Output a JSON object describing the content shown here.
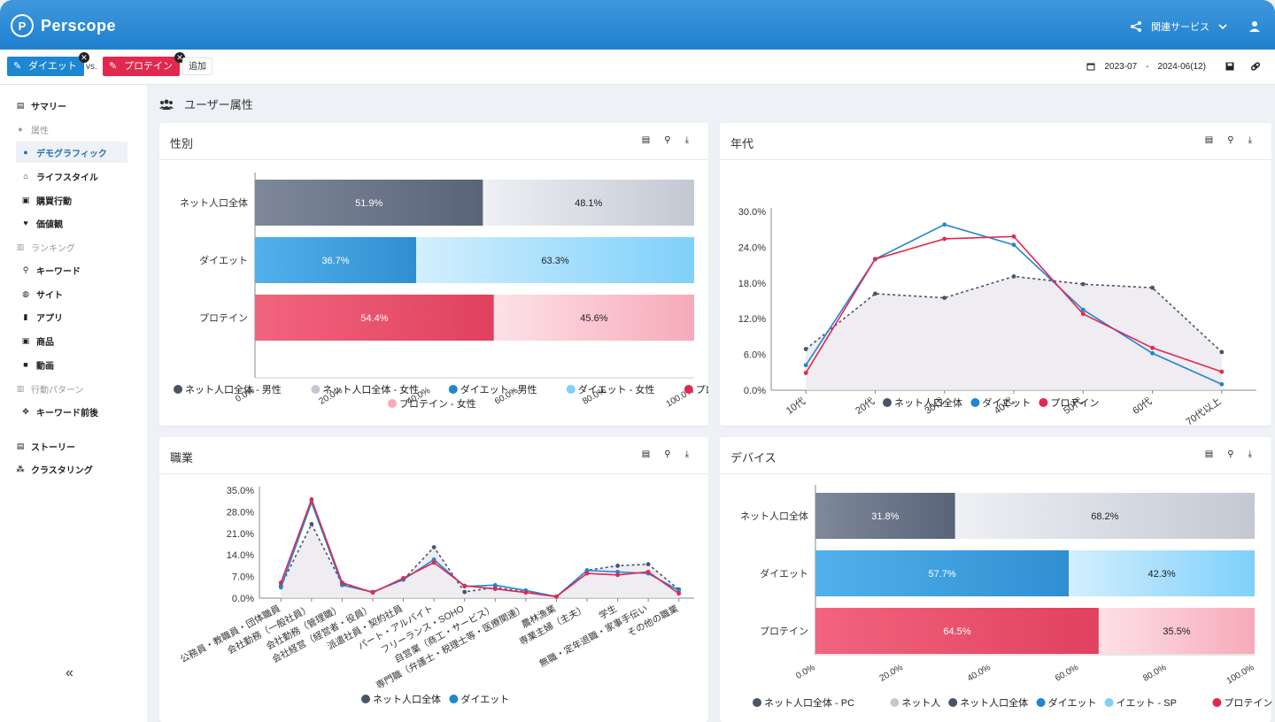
{
  "app": {
    "name": "Perscope",
    "logo_glyph": "P"
  },
  "header": {
    "related_services": "関連サービス",
    "user_icon": "user-icon",
    "share_icon": "share-icon"
  },
  "filters": {
    "chips": [
      {
        "label": "ダイエット",
        "color": "#1f86d1"
      },
      {
        "label": "プロテイン",
        "color": "#e2284f"
      }
    ],
    "vs": "vs.",
    "add": "追加",
    "date_start": "2023-07",
    "date_sep": "-",
    "date_end": "2024-06(12)"
  },
  "sidebar": {
    "items": [
      {
        "label": "サマリー",
        "icon": "document-icon",
        "kind": "top"
      },
      {
        "label": "属性",
        "icon": "person-icon",
        "kind": "section"
      },
      {
        "label": "デモグラフィック",
        "icon": "person-icon",
        "kind": "active"
      },
      {
        "label": "ライフスタイル",
        "icon": "home-icon",
        "kind": "sub"
      },
      {
        "label": "購買行動",
        "icon": "bag-icon",
        "kind": "sub"
      },
      {
        "label": "価値観",
        "icon": "heart-icon",
        "kind": "sub"
      },
      {
        "label": "ランキング",
        "icon": "chart-icon",
        "kind": "section"
      },
      {
        "label": "キーワード",
        "icon": "search-icon",
        "kind": "sub"
      },
      {
        "label": "サイト",
        "icon": "globe-icon",
        "kind": "sub"
      },
      {
        "label": "アプリ",
        "icon": "phone-icon",
        "kind": "sub"
      },
      {
        "label": "商品",
        "icon": "bag-icon",
        "kind": "sub"
      },
      {
        "label": "動画",
        "icon": "video-icon",
        "kind": "sub"
      },
      {
        "label": "行動パターン",
        "icon": "chart-icon",
        "kind": "section"
      },
      {
        "label": "キーワード前後",
        "icon": "arrows-icon",
        "kind": "sub"
      },
      {
        "label": "ストーリー",
        "icon": "book-icon",
        "kind": "top"
      },
      {
        "label": "クラスタリング",
        "icon": "cluster-icon",
        "kind": "top"
      }
    ],
    "collapse": "«"
  },
  "main": {
    "section_title": "ユーザー属性"
  },
  "colors": {
    "net_dark": "#5a6478",
    "net_light": "#c3c8d3",
    "diet_dark": "#2f8fd1",
    "diet_light": "#7fd0fb",
    "protein_dark": "#e0415e",
    "protein_light": "#f7aab9",
    "net_line": "#4a5468",
    "diet_line": "#1f86d1",
    "protein_line": "#e2284f"
  },
  "chart_data": [
    {
      "id": "gender",
      "title": "性別",
      "type": "bar",
      "orientation": "horizontal",
      "stacked": true,
      "categories": [
        "ネット人口全体",
        "ダイエット",
        "プロテイン"
      ],
      "series": [
        {
          "name": "男性",
          "values": [
            51.9,
            36.7,
            54.4
          ]
        },
        {
          "name": "女性",
          "values": [
            48.1,
            63.3,
            45.6
          ]
        }
      ],
      "value_labels": [
        [
          "51.9%",
          "48.1%"
        ],
        [
          "36.7%",
          "63.3%"
        ],
        [
          "54.4%",
          "45.6%"
        ]
      ],
      "xticks": [
        "0.0%",
        "20.0%",
        "40.0%",
        "60.0%",
        "80.0%",
        "100.0%"
      ],
      "xlim": [
        0,
        100
      ],
      "legend": [
        "ネット人口全体 - 男性",
        "ネット人口全体 - 女性",
        "ダイエット - 男性",
        "ダイエット - 女性",
        "プロテイン - 男性",
        "プロテイン - 女性"
      ]
    },
    {
      "id": "age",
      "title": "年代",
      "type": "line",
      "categories": [
        "10代",
        "20代",
        "30代",
        "40代",
        "50代",
        "60代",
        "70代以上"
      ],
      "series": [
        {
          "name": "ネット人口全体",
          "values": [
            6.9,
            16.2,
            15.5,
            19.1,
            17.8,
            17.2,
            6.4
          ]
        },
        {
          "name": "ダイエット",
          "values": [
            4.2,
            22.0,
            27.8,
            24.4,
            13.5,
            6.2,
            1.0
          ]
        },
        {
          "name": "プロテイン",
          "values": [
            2.9,
            22.0,
            25.4,
            25.8,
            12.8,
            7.1,
            3.1
          ]
        }
      ],
      "yticks": [
        "0.0%",
        "6.0%",
        "12.0%",
        "18.0%",
        "24.0%",
        "30.0%"
      ],
      "ylim": [
        0,
        30
      ],
      "legend": [
        "ネット人口全体",
        "ダイエット",
        "プロテイン"
      ]
    },
    {
      "id": "job",
      "title": "職業",
      "type": "line",
      "categories": [
        "公務員・教職員・団体職員",
        "会社勤務（一般社員）",
        "会社勤務（管理職）",
        "会社経営（経営者・役員）",
        "派遣社員・契約社員",
        "パート・アルバイト",
        "フリーランス・SOHO",
        "自営業（商工・サービス）",
        "専門職（弁護士・税理士等・医療関連）",
        "農林漁業",
        "専業主婦（主夫）",
        "学生",
        "無職・定年退職・家事手伝い",
        "その他の職業"
      ],
      "series": [
        {
          "name": "ネット人口全体",
          "values": [
            4.0,
            24.0,
            4.5,
            2.0,
            6.0,
            16.5,
            2.0,
            3.5,
            2.0,
            0.5,
            9.0,
            10.5,
            11.0,
            2.8
          ]
        },
        {
          "name": "ダイエット",
          "values": [
            3.5,
            31.0,
            4.2,
            2.0,
            6.0,
            12.5,
            3.8,
            4.2,
            2.5,
            0.5,
            9.0,
            8.5,
            8.0,
            2.5
          ]
        },
        {
          "name": "プロテイン",
          "values": [
            5.0,
            32.0,
            5.0,
            1.8,
            6.5,
            11.5,
            4.0,
            3.0,
            1.8,
            0.5,
            8.0,
            7.5,
            8.5,
            1.5
          ]
        }
      ],
      "yticks": [
        "0.0%",
        "7.0%",
        "14.0%",
        "21.0%",
        "28.0%",
        "35.0%"
      ],
      "ylim": [
        0,
        35
      ],
      "legend": [
        "ネット人口全体",
        "ダイエット"
      ]
    },
    {
      "id": "device",
      "title": "デバイス",
      "type": "bar",
      "orientation": "horizontal",
      "stacked": true,
      "categories": [
        "ネット人口全体",
        "ダイエット",
        "プロテイン"
      ],
      "series": [
        {
          "name": "PC",
          "values": [
            31.8,
            57.7,
            64.5
          ]
        },
        {
          "name": "SP",
          "values": [
            68.2,
            42.3,
            35.5
          ]
        }
      ],
      "value_labels": [
        [
          "31.8%",
          "68.2%"
        ],
        [
          "57.7%",
          "42.3%"
        ],
        [
          "64.5%",
          "35.5%"
        ]
      ],
      "xticks": [
        "0.0%",
        "20.0%",
        "40.0%",
        "60.0%",
        "80.0%",
        "100.0%"
      ],
      "xlim": [
        0,
        100
      ],
      "legend": [
        "ネット人口全体 - PC",
        "ネット人",
        "ネット人口全体",
        "ダイエット",
        "イエット - SP",
        "プロテイン - PC"
      ]
    }
  ]
}
